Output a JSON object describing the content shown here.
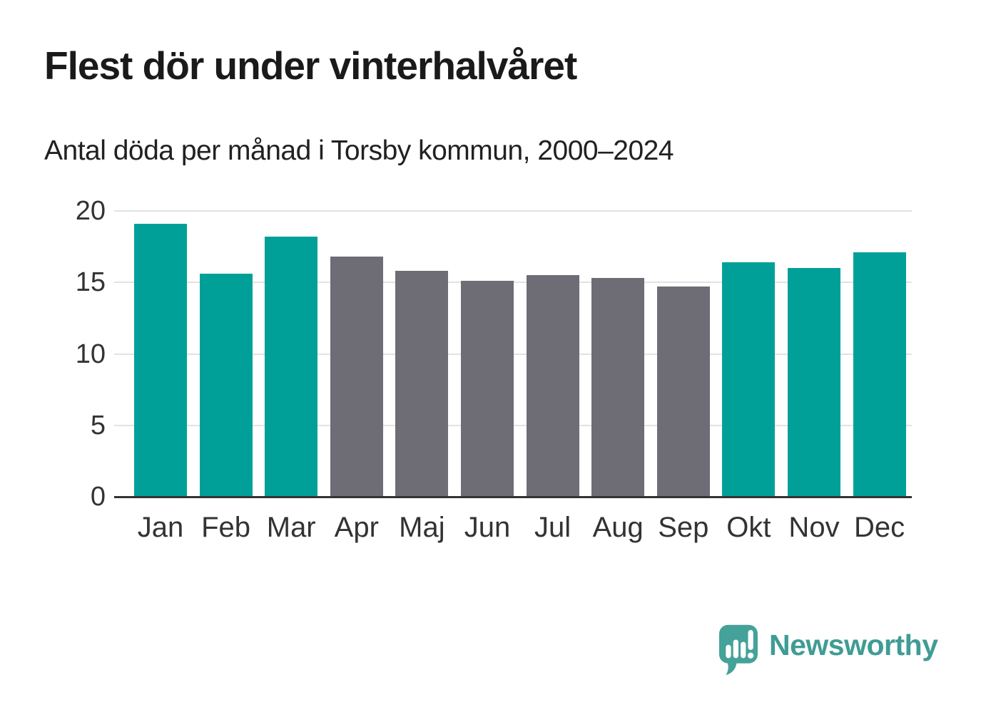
{
  "header": {
    "title": "Flest dör under vinterhalvåret",
    "subtitle": "Antal döda per månad i Torsby kommun, 2000–2024"
  },
  "chart_data": {
    "type": "bar",
    "title": "Flest dör under vinterhalvåret",
    "subtitle": "Antal döda per månad i Torsby kommun, 2000–2024",
    "categories": [
      "Jan",
      "Feb",
      "Mar",
      "Apr",
      "Maj",
      "Jun",
      "Jul",
      "Aug",
      "Sep",
      "Okt",
      "Nov",
      "Dec"
    ],
    "values": [
      19.1,
      15.6,
      18.2,
      16.8,
      15.8,
      15.1,
      15.5,
      15.3,
      14.7,
      16.4,
      16.0,
      17.1
    ],
    "bar_colors": [
      "#00A099",
      "#00A099",
      "#00A099",
      "#6E6C74",
      "#6E6C74",
      "#6E6C74",
      "#6E6C74",
      "#6E6C74",
      "#6E6C74",
      "#00A099",
      "#00A099",
      "#00A099"
    ],
    "xlabel": "",
    "ylabel": "",
    "ylim": [
      0,
      20
    ],
    "yticks": [
      0,
      5,
      10,
      15,
      20
    ],
    "grid": true,
    "legend": "none",
    "style": {
      "winter_color": "#00A099",
      "summer_color": "#6E6C74",
      "grid_color": "#e2e2e2",
      "axis_line_color": "#333333",
      "tick_label_color": "#333333"
    }
  },
  "footer": {
    "brand": "Newsworthy",
    "brand_color": "#3F9C94",
    "logo_icon": "speech-bubble-bar-chart-icon",
    "logo_color": "#44A29A"
  }
}
